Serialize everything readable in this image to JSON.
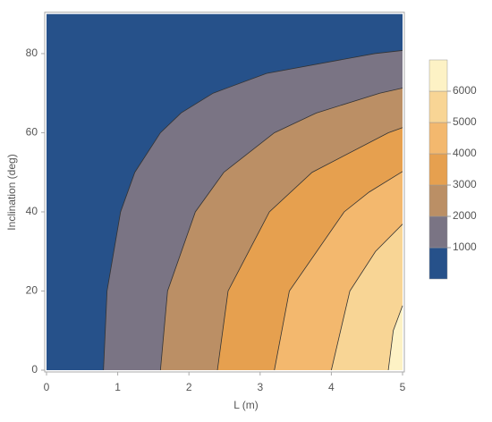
{
  "chart_data": {
    "type": "contour",
    "xlabel": "L (m)",
    "ylabel": "Inclination (deg)",
    "xlim": [
      0,
      5
    ],
    "ylim": [
      0,
      90
    ],
    "xticks": [
      0,
      1,
      2,
      3,
      4,
      5
    ],
    "yticks": [
      0,
      20,
      40,
      60,
      80
    ],
    "colorbar": {
      "lim": [
        0,
        7000
      ],
      "ticks": [
        1000,
        2000,
        3000,
        4000,
        5000,
        6000
      ],
      "colors": [
        "#26518a",
        "#7a7484",
        "#bb8f65",
        "#e6a04f",
        "#f3b86e",
        "#f8d595",
        "#fdf2c5"
      ]
    },
    "contours": [
      {
        "x": [
          0.8,
          0.85,
          1.04,
          1.24,
          1.6,
          1.89,
          2.34,
          3.09,
          4.61,
          5
        ],
        "y": [
          0,
          20,
          40,
          50,
          60,
          65,
          70,
          75,
          80,
          80.8
        ]
      },
      {
        "x": [
          1.6,
          1.7,
          2.09,
          2.49,
          3.2,
          3.79,
          4.68,
          5
        ],
        "y": [
          0,
          20,
          40,
          50,
          60,
          65,
          70,
          71.3
        ]
      },
      {
        "x": [
          2.4,
          2.55,
          3.13,
          3.73,
          4.8,
          5
        ],
        "y": [
          0,
          20,
          40,
          50,
          60,
          61.3
        ]
      },
      {
        "x": [
          3.2,
          3.41,
          4.18,
          4.53,
          5
        ],
        "y": [
          0,
          20,
          40,
          45,
          50.2
        ]
      },
      {
        "x": [
          4.0,
          4.26,
          4.62,
          5
        ],
        "y": [
          0,
          20,
          30,
          36.9
        ]
      },
      {
        "x": [
          4.8,
          4.87,
          5
        ],
        "y": [
          0,
          10,
          16.3
        ]
      }
    ]
  }
}
